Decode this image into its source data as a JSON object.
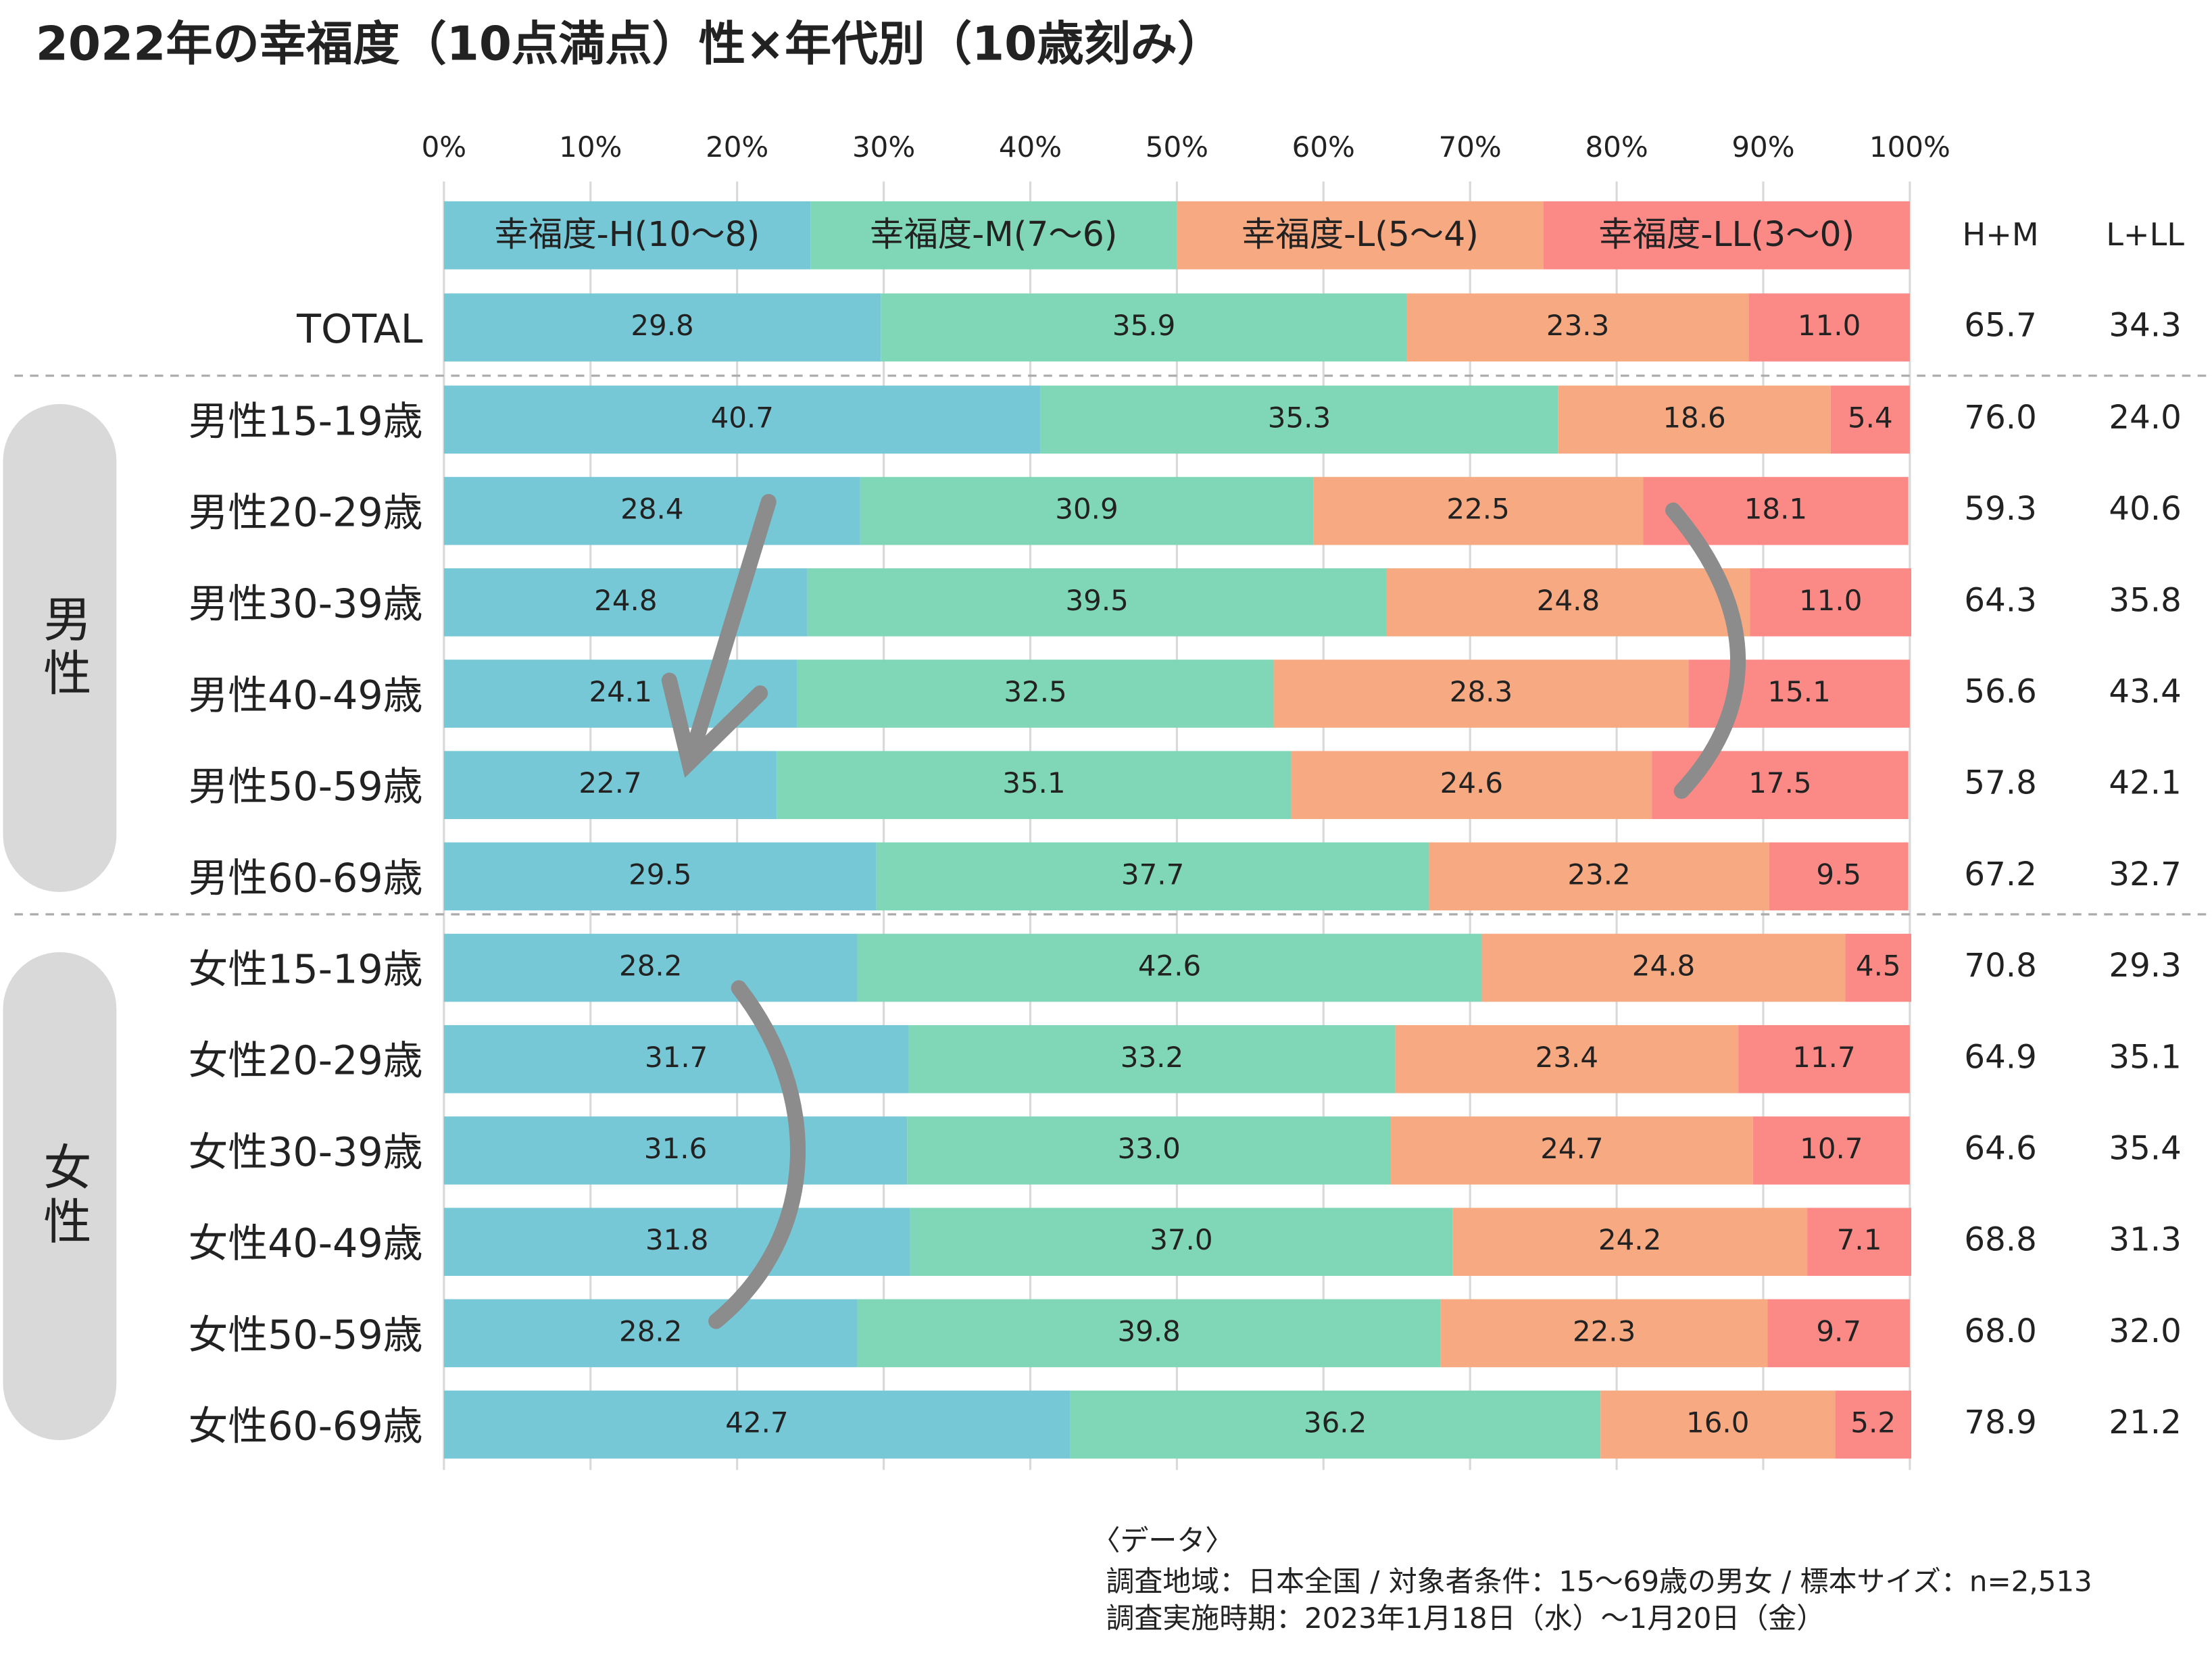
{
  "chart_data": {
    "type": "stacked-barh",
    "title": "2022年の幸福度（10点満点）性×年代別（10歳刻み）",
    "categories": [
      "TOTAL",
      "男性15-19歳",
      "男性20-29歳",
      "男性30-39歳",
      "男性40-49歳",
      "男性50-59歳",
      "男性60-69歳",
      "女性15-19歳",
      "女性20-29歳",
      "女性30-39歳",
      "女性40-49歳",
      "女性50-59歳",
      "女性60-69歳"
    ],
    "groups": [
      "男性",
      "女性"
    ],
    "series": [
      {
        "name": "幸福度-H(10～8)",
        "color": "#76c8d6",
        "values": [
          29.8,
          40.7,
          28.4,
          24.8,
          24.1,
          22.7,
          29.5,
          28.2,
          31.7,
          31.6,
          31.8,
          28.2,
          42.7
        ],
        "value_labels": [
          "29.8",
          "40.7",
          "28.4",
          "24.8",
          "24.1",
          "22.7",
          "29.5",
          "28.2",
          "31.7",
          "31.6",
          "31.8",
          "28.2",
          "42.7"
        ]
      },
      {
        "name": "幸福度-M(7～6)",
        "color": "#7fd7b8",
        "values": [
          35.9,
          35.3,
          30.9,
          39.5,
          32.5,
          35.1,
          37.7,
          42.6,
          33.2,
          33.0,
          37.0,
          39.8,
          36.2
        ],
        "value_labels": [
          "35.9",
          "35.3",
          "30.9",
          "39.5",
          "32.5",
          "35.1",
          "37.7",
          "42.6",
          "33.2",
          "33.0",
          "37.0",
          "39.8",
          "36.2"
        ]
      },
      {
        "name": "幸福度-L(5～4)",
        "color": "#f7a982",
        "values": [
          23.3,
          18.6,
          22.5,
          24.8,
          28.3,
          24.6,
          23.2,
          24.8,
          23.4,
          24.7,
          24.2,
          22.3,
          16.0
        ],
        "value_labels": [
          "23.3",
          "18.6",
          "22.5",
          "24.8",
          "28.3",
          "24.6",
          "23.2",
          "24.8",
          "23.4",
          "24.7",
          "24.2",
          "22.3",
          "16.0"
        ]
      },
      {
        "name": "幸福度-LL(3～0)",
        "color": "#fb8a87",
        "values": [
          11.0,
          5.4,
          18.1,
          11.0,
          15.1,
          17.5,
          9.5,
          4.5,
          11.7,
          10.7,
          7.1,
          9.7,
          5.2
        ],
        "value_labels": [
          "11.0",
          "5.4",
          "18.1",
          "11.0",
          "15.1",
          "17.5",
          "9.5",
          "4.5",
          "11.7",
          "10.7",
          "7.1",
          "9.7",
          "5.2"
        ]
      }
    ],
    "summary_columns": [
      {
        "name": "H+M",
        "values": [
          65.7,
          76.0,
          59.3,
          64.3,
          56.6,
          57.8,
          67.2,
          70.8,
          64.9,
          64.6,
          68.8,
          68.0,
          78.9
        ],
        "value_labels": [
          "65.7",
          "76.0",
          "59.3",
          "64.3",
          "56.6",
          "57.8",
          "67.2",
          "70.8",
          "64.9",
          "64.6",
          "68.8",
          "68.0",
          "78.9"
        ]
      },
      {
        "name": "L+LL",
        "values": [
          34.3,
          24.0,
          40.6,
          35.8,
          43.4,
          42.1,
          32.7,
          29.3,
          35.1,
          35.4,
          31.3,
          32.0,
          21.2
        ],
        "value_labels": [
          "34.3",
          "24.0",
          "40.6",
          "35.8",
          "43.4",
          "42.1",
          "32.7",
          "29.3",
          "35.1",
          "35.4",
          "31.3",
          "32.0",
          "21.2"
        ]
      }
    ],
    "xlim": [
      0,
      100
    ],
    "xticks": [
      {
        "value": 0,
        "label": "0%"
      },
      {
        "value": 10,
        "label": "10%"
      },
      {
        "value": 20,
        "label": "20%"
      },
      {
        "value": 30,
        "label": "30%"
      },
      {
        "value": 40,
        "label": "40%"
      },
      {
        "value": 50,
        "label": "50%"
      },
      {
        "value": 60,
        "label": "60%"
      },
      {
        "value": 70,
        "label": "70%"
      },
      {
        "value": 80,
        "label": "80%"
      },
      {
        "value": 90,
        "label": "90%"
      },
      {
        "value": 100,
        "label": "100%"
      }
    ],
    "grid": true,
    "notes": [
      "〈データ〉",
      "調査地域：日本全国 / 対象者条件：15～69歳の男女 / 標本サイズ：n=2,513",
      "調査実施時期：2023年1月18日（水）～1月20日（金）"
    ]
  }
}
